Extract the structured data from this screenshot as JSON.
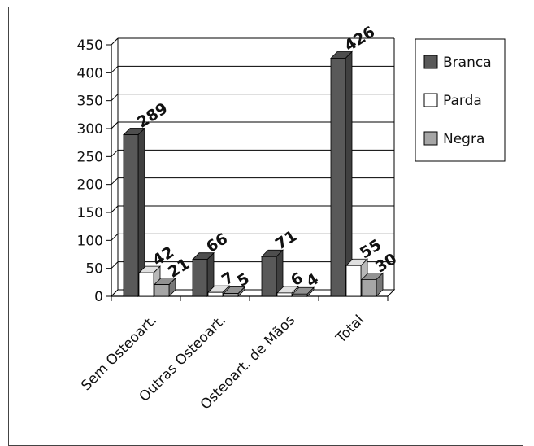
{
  "chart_data": {
    "type": "bar",
    "categories": [
      "Sem Osteoart.",
      "Outras Osteoart.",
      "Osteoart. de Mãos",
      "Total"
    ],
    "series": [
      {
        "name": "Branca",
        "values": [
          289,
          66,
          71,
          426
        ],
        "color": "#595959"
      },
      {
        "name": "Parda",
        "values": [
          42,
          7,
          6,
          55
        ],
        "color": "#ffffff"
      },
      {
        "name": "Negra",
        "values": [
          21,
          5,
          4,
          30
        ],
        "color": "#a6a6a6"
      }
    ],
    "yticks": [
      0,
      50,
      100,
      150,
      200,
      250,
      300,
      350,
      400,
      450
    ],
    "ylim": [
      0,
      450
    ],
    "grid": true,
    "legend_position": "right",
    "style": "3d-clustered-column"
  }
}
